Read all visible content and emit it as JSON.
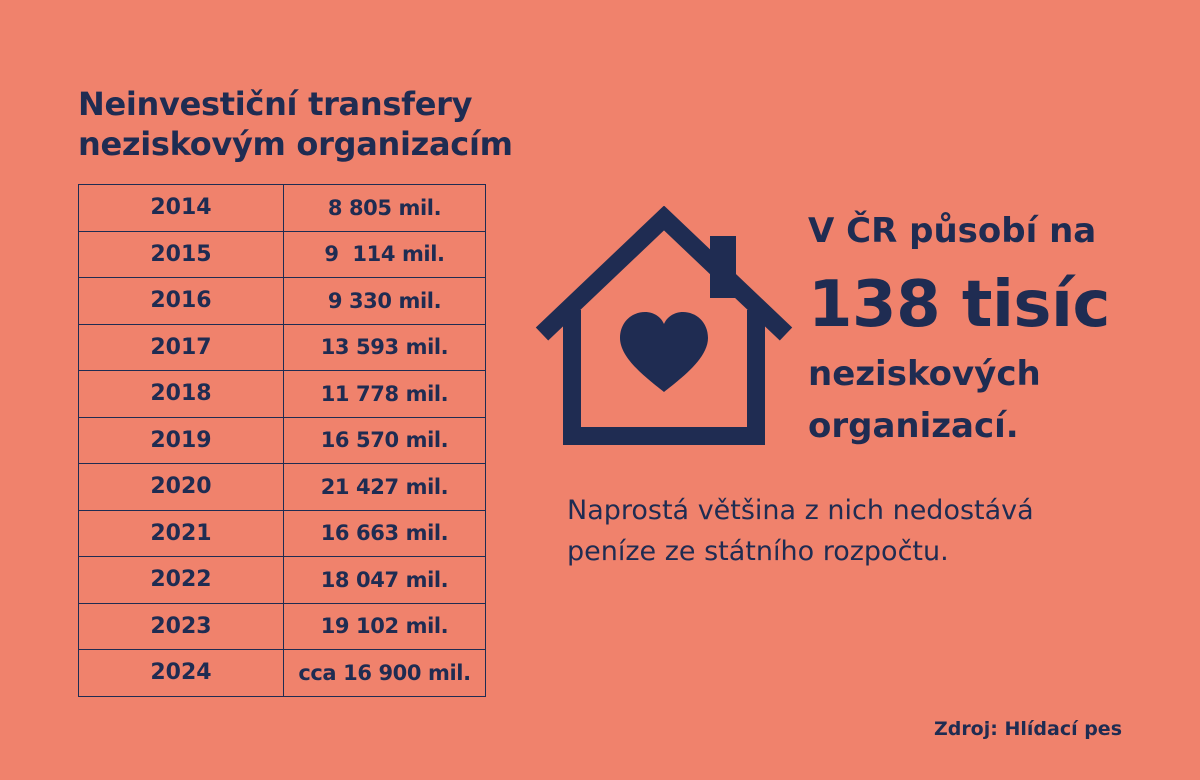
{
  "title": {
    "line1": "Neinvestiční transfery",
    "line2": "neziskovým organizacím"
  },
  "table": {
    "rows": [
      {
        "year": "2014",
        "value": "8 805 mil."
      },
      {
        "year": "2015",
        "value": "9  114 mil."
      },
      {
        "year": "2016",
        "value": "9 330 mil."
      },
      {
        "year": "2017",
        "value": "13 593 mil."
      },
      {
        "year": "2018",
        "value": "11 778 mil."
      },
      {
        "year": "2019",
        "value": "16 570 mil."
      },
      {
        "year": "2020",
        "value": "21 427 mil."
      },
      {
        "year": "2021",
        "value": "16 663 mil."
      },
      {
        "year": "2022",
        "value": "18 047 mil."
      },
      {
        "year": "2023",
        "value": "19 102 mil."
      },
      {
        "year": "2024",
        "value": "cca 16 900 mil."
      }
    ]
  },
  "headline": {
    "line1": "V ČR působí na",
    "line2": "138 tisíc",
    "line3": "neziskových",
    "line4": "organizací."
  },
  "subtext": {
    "line1": "Naprostá většina z nich nedostává",
    "line2": "peníze ze státního rozpočtu."
  },
  "source": "Zdroj: Hlídací pes",
  "icons": {
    "house": "house-with-heart-icon"
  },
  "colors": {
    "background": "#f0826c",
    "ink": "#1f2c52"
  }
}
